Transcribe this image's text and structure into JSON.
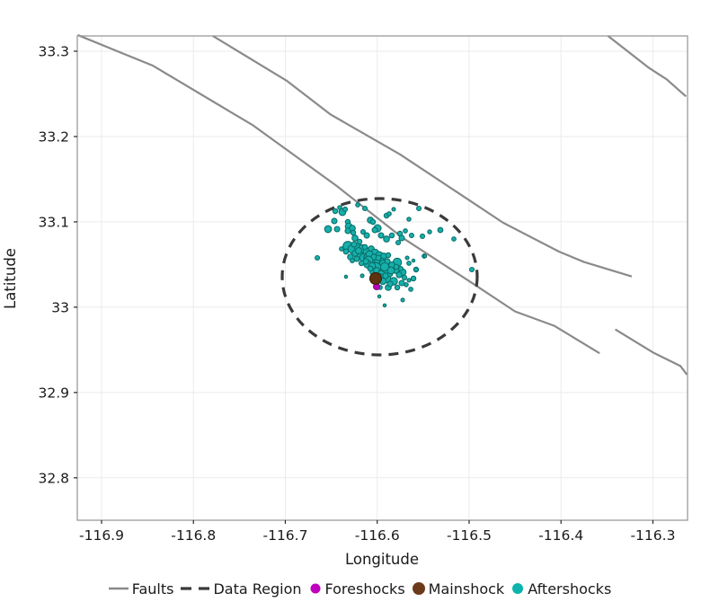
{
  "axes": {
    "xlabel": "Longitude",
    "ylabel": "Latitude",
    "xlim": [
      -116.9264,
      -116.2623
    ],
    "ylim": [
      32.7503,
      33.3179
    ],
    "xticks": [
      -116.9,
      -116.8,
      -116.7,
      -116.6,
      -116.5,
      -116.4,
      -116.3
    ],
    "xtick_labels": [
      "-116.9",
      "-116.8",
      "-116.7",
      "-116.6",
      "-116.5",
      "-116.4",
      "-116.3"
    ],
    "yticks": [
      33.3,
      33.2,
      33.1,
      33.0,
      32.9,
      32.8
    ],
    "ytick_labels": [
      "33.3",
      "33.2",
      "33.1",
      "33",
      "32.9",
      "32.8"
    ],
    "grid": true
  },
  "colors": {
    "fault": "#8a8a8a",
    "data_region": "#3a3a3a",
    "foreshocks_fill": "#bf00bf",
    "foreshocks_stroke": "#8a0b8a",
    "mainshock_fill": "#5f3210",
    "mainshock_stroke": "#3c1f08",
    "aftershocks_fill": "#16b0ab",
    "aftershocks_stroke": "#0a6f6b",
    "grid": "#ebebeb",
    "frame": "#9a9a9a",
    "tick": "#262626"
  },
  "legend": {
    "items": [
      {
        "label": "Faults",
        "marker": "line",
        "color": "#8a8a8a"
      },
      {
        "label": "Data Region",
        "marker": "dashed-line",
        "color": "#3a3a3a"
      },
      {
        "label": "Foreshocks",
        "marker": "dot",
        "color": "#bf00bf",
        "r": 5.5
      },
      {
        "label": "Mainshock",
        "marker": "dot",
        "color": "#6b3a1a",
        "r": 7
      },
      {
        "label": "Aftershocks",
        "marker": "dot",
        "color": "#0db4ac",
        "r": 6
      }
    ]
  },
  "chart_data": {
    "type": "scatter",
    "title": "",
    "xlabel": "Longitude",
    "ylabel": "Latitude",
    "series": [
      {
        "name": "Faults",
        "type": "polyline",
        "paths": [
          [
            [
              -116.926,
              33.319
            ],
            [
              -116.844,
              33.283
            ],
            [
              -116.735,
              33.213
            ],
            [
              -116.644,
              33.142
            ],
            [
              -116.572,
              33.081
            ],
            [
              -116.492,
              33.025
            ],
            [
              -116.45,
              32.995
            ],
            [
              -116.407,
              32.978
            ],
            [
              -116.358,
              32.946
            ]
          ],
          [
            [
              -116.779,
              33.318
            ],
            [
              -116.698,
              33.265
            ],
            [
              -116.651,
              33.226
            ],
            [
              -116.575,
              33.179
            ],
            [
              -116.463,
              33.099
            ],
            [
              -116.402,
              33.065
            ],
            [
              -116.375,
              33.053
            ],
            [
              -116.323,
              33.036
            ]
          ],
          [
            [
              -116.349,
              33.318
            ],
            [
              -116.305,
              33.281
            ],
            [
              -116.285,
              33.267
            ],
            [
              -116.264,
              33.247
            ]
          ],
          [
            [
              -116.341,
              32.974
            ],
            [
              -116.3,
              32.947
            ],
            [
              -116.27,
              32.931
            ],
            [
              -116.263,
              32.921
            ]
          ]
        ]
      },
      {
        "name": "Data Region",
        "type": "ellipse",
        "center": [
          -116.5973,
          33.0357
        ],
        "rx_deg": 0.1061,
        "ry_deg": 0.0916
      },
      {
        "name": "Foreshocks",
        "type": "scatter",
        "points": [
          [
            -116.6007,
            33.0241,
            3.5
          ]
        ]
      },
      {
        "name": "Mainshock",
        "type": "scatter",
        "points": [
          [
            -116.6017,
            33.0336,
            6.5
          ]
        ]
      },
      {
        "name": "Aftershocks",
        "type": "scatter",
        "points": [
          [
            -116.6457,
            33.1126,
            2.7
          ],
          [
            -116.6408,
            33.1168,
            2.2
          ],
          [
            -116.6379,
            33.1115,
            3.8
          ],
          [
            -116.6349,
            33.1147,
            2.5
          ],
          [
            -116.6467,
            33.101,
            3.0
          ],
          [
            -116.6535,
            33.0915,
            3.8
          ],
          [
            -116.6437,
            33.0915,
            3.0
          ],
          [
            -116.632,
            33.0999,
            2.7
          ],
          [
            -116.631,
            33.0946,
            3.8
          ],
          [
            -116.6271,
            33.0925,
            3.3
          ],
          [
            -116.632,
            33.0894,
            3.0
          ],
          [
            -116.6261,
            33.0873,
            2.7
          ],
          [
            -116.6075,
            33.102,
            3.3
          ],
          [
            -116.6046,
            33.0999,
            2.7
          ],
          [
            -116.5997,
            33.0925,
            4.0
          ],
          [
            -116.6026,
            33.0904,
            3.0
          ],
          [
            -116.5899,
            33.1073,
            2.7
          ],
          [
            -116.6212,
            33.1199,
            2.3
          ],
          [
            -116.6134,
            33.1157,
            2.5
          ],
          [
            -116.587,
            33.1094,
            2.3
          ],
          [
            -116.5821,
            33.1147,
            2.0
          ],
          [
            -116.5547,
            33.1157,
            2.5
          ],
          [
            -116.5655,
            33.1031,
            2.2
          ],
          [
            -116.6652,
            33.0578,
            2.5
          ],
          [
            -116.5753,
            33.0862,
            2.7
          ],
          [
            -116.5694,
            33.0894,
            2.3
          ],
          [
            -116.5733,
            33.081,
            3.0
          ],
          [
            -116.5626,
            33.0841,
            2.5
          ],
          [
            -116.5508,
            33.0831,
            2.5
          ],
          [
            -116.543,
            33.0883,
            2.2
          ],
          [
            -116.5313,
            33.0904,
            2.8
          ],
          [
            -116.5166,
            33.0799,
            2.3
          ],
          [
            -116.497,
            33.0441,
            2.5
          ],
          [
            -116.5577,
            33.0441,
            2.7
          ],
          [
            -116.5489,
            33.0599,
            2.3
          ],
          [
            -116.6242,
            33.081,
            3.3
          ],
          [
            -116.6193,
            33.0768,
            2.7
          ],
          [
            -116.6114,
            33.0841,
            3.0
          ],
          [
            -116.6154,
            33.0883,
            2.5
          ],
          [
            -116.5958,
            33.0841,
            3.0
          ],
          [
            -116.5899,
            33.0799,
            3.3
          ],
          [
            -116.5841,
            33.0841,
            2.7
          ],
          [
            -116.5772,
            33.0757,
            2.5
          ],
          [
            -116.632,
            33.0715,
            5.3
          ],
          [
            -116.6271,
            33.0683,
            4.7
          ],
          [
            -116.6212,
            33.0704,
            4.0
          ],
          [
            -116.6163,
            33.0683,
            4.7
          ],
          [
            -116.6114,
            33.0652,
            4.0
          ],
          [
            -116.6065,
            33.0683,
            3.3
          ],
          [
            -116.6026,
            33.063,
            4.7
          ],
          [
            -116.5977,
            33.0609,
            4.0
          ],
          [
            -116.5929,
            33.0599,
            3.3
          ],
          [
            -116.588,
            33.0609,
            2.7
          ],
          [
            -116.6193,
            33.0609,
            4.0
          ],
          [
            -116.6144,
            33.0578,
            4.7
          ],
          [
            -116.6242,
            33.063,
            3.3
          ],
          [
            -116.6095,
            33.0578,
            5.3
          ],
          [
            -116.6046,
            33.0557,
            4.0
          ],
          [
            -116.5997,
            33.0546,
            3.3
          ],
          [
            -116.5948,
            33.0546,
            2.7
          ],
          [
            -116.634,
            33.0652,
            2.8
          ],
          [
            -116.6291,
            33.0589,
            3.2
          ],
          [
            -116.6389,
            33.0683,
            2.3
          ],
          [
            -116.6252,
            33.0736,
            3.0
          ],
          [
            -116.6203,
            33.0662,
            3.5
          ],
          [
            -116.6134,
            33.0704,
            2.8
          ],
          [
            -116.6085,
            33.062,
            3.8
          ],
          [
            -116.6036,
            33.0588,
            3.2
          ],
          [
            -116.5987,
            33.0578,
            2.9
          ],
          [
            -116.6095,
            33.0546,
            5.0
          ],
          [
            -116.6016,
            33.0462,
            5.8
          ],
          [
            -116.5929,
            33.041,
            5.0
          ],
          [
            -116.587,
            33.0473,
            4.2
          ],
          [
            -116.5782,
            33.0525,
            4.7
          ],
          [
            -116.5802,
            33.0441,
            4.2
          ],
          [
            -116.5723,
            33.041,
            3.7
          ],
          [
            -116.5899,
            33.0336,
            4.7
          ],
          [
            -116.5821,
            33.0304,
            4.2
          ],
          [
            -116.6046,
            33.041,
            3.3
          ],
          [
            -116.588,
            33.0231,
            3.3
          ],
          [
            -116.5782,
            33.0231,
            2.7
          ],
          [
            -116.5733,
            33.0283,
            3.0
          ],
          [
            -116.5968,
            33.0231,
            2.3
          ],
          [
            -116.5674,
            33.0578,
            2.0
          ],
          [
            -116.5606,
            33.0546,
            1.7
          ],
          [
            -116.5655,
            33.0515,
            2.3
          ],
          [
            -116.5479,
            33.0599,
            1.7
          ],
          [
            -116.5635,
            33.021,
            2.3
          ],
          [
            -116.5606,
            33.0336,
            2.7
          ],
          [
            -116.5655,
            33.0315,
            2.0
          ],
          [
            -116.5577,
            33.0441,
            2.3
          ],
          [
            -116.5977,
            33.0126,
            1.7
          ],
          [
            -116.5723,
            33.0084,
            2.0
          ],
          [
            -116.6163,
            33.0368,
            2.0
          ],
          [
            -116.634,
            33.0357,
            1.7
          ],
          [
            -116.5919,
            33.0021,
            1.7
          ],
          [
            -116.5938,
            33.0515,
            3.6
          ],
          [
            -116.5889,
            33.0536,
            3.0
          ],
          [
            -116.5841,
            33.0494,
            3.4
          ],
          [
            -116.5792,
            33.0473,
            2.8
          ],
          [
            -116.5743,
            33.0452,
            2.4
          ],
          [
            -116.6105,
            33.0504,
            4.2
          ],
          [
            -116.6056,
            33.0483,
            3.7
          ],
          [
            -116.6007,
            33.0431,
            3.3
          ],
          [
            -116.5958,
            33.0389,
            3.8
          ],
          [
            -116.5909,
            33.0368,
            3.2
          ],
          [
            -116.586,
            33.0389,
            2.8
          ],
          [
            -116.5977,
            33.0347,
            4.4
          ],
          [
            -116.5938,
            33.0304,
            3.6
          ],
          [
            -116.586,
            33.0273,
            3.0
          ],
          [
            -116.6075,
            33.0452,
            2.9
          ],
          [
            -116.6124,
            33.0536,
            3.1
          ],
          [
            -116.6173,
            33.0515,
            2.6
          ],
          [
            -116.6222,
            33.0567,
            2.9
          ],
          [
            -116.6271,
            33.0546,
            2.4
          ],
          [
            -116.5919,
            33.0473,
            4.6
          ],
          [
            -116.585,
            33.0431,
            3.9
          ],
          [
            -116.5762,
            33.0378,
            3.1
          ],
          [
            -116.5704,
            33.0347,
            2.6
          ],
          [
            -116.5684,
            33.0263,
            2.2
          ]
        ]
      }
    ]
  }
}
